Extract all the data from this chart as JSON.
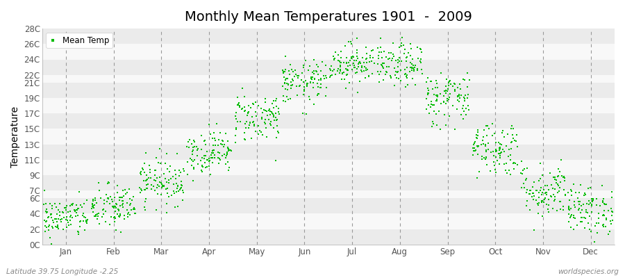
{
  "title": "Monthly Mean Temperatures 1901  -  2009",
  "ylabel": "Temperature",
  "xlabel_labels": [
    "Jan",
    "Feb",
    "Mar",
    "Apr",
    "May",
    "Jun",
    "Jul",
    "Aug",
    "Sep",
    "Oct",
    "Nov",
    "Dec"
  ],
  "ytick_labels": [
    "0C",
    "2C",
    "4C",
    "6C",
    "7C",
    "9C",
    "11C",
    "13C",
    "15C",
    "17C",
    "19C",
    "21C",
    "22C",
    "24C",
    "26C",
    "28C"
  ],
  "ytick_values": [
    0,
    2,
    4,
    6,
    7,
    9,
    11,
    13,
    15,
    17,
    19,
    21,
    22,
    24,
    26,
    28
  ],
  "ylim": [
    0,
    28
  ],
  "scatter_color": "#00bb00",
  "scatter_marker": "s",
  "scatter_size": 3,
  "legend_label": "Mean Temp",
  "background_color": "#ffffff",
  "plot_bg_light": "#ebebeb",
  "plot_bg_dark": "#f8f8f8",
  "grid_color": "#ffffff",
  "dashed_line_color": "#999999",
  "footer_left": "Latitude 39.75 Longitude -2.25",
  "footer_right": "worldspecies.org",
  "title_fontsize": 14,
  "axis_fontsize": 10,
  "tick_fontsize": 8.5,
  "monthly_means": [
    3.5,
    4.8,
    8.2,
    12.0,
    16.5,
    21.0,
    23.5,
    23.2,
    19.0,
    12.5,
    7.0,
    4.5
  ],
  "monthly_stds": [
    1.3,
    1.5,
    1.5,
    1.4,
    1.6,
    1.4,
    1.3,
    1.4,
    1.8,
    1.8,
    1.8,
    1.6
  ],
  "n_years": 109
}
